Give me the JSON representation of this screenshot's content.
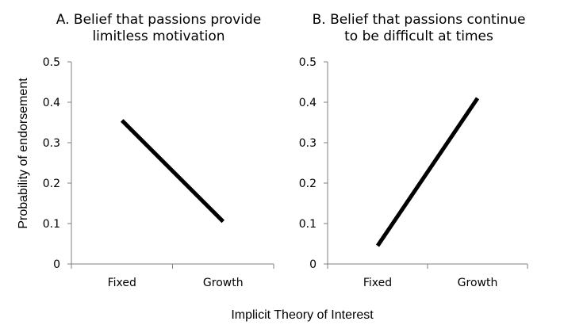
{
  "chart_data": [
    {
      "type": "line",
      "title": "A.  Belief that passions provide limitless motivation",
      "title_lines": [
        "A.  Belief that passions provide",
        "limitless motivation"
      ],
      "categories": [
        "Fixed",
        "Growth"
      ],
      "values": [
        0.355,
        0.105
      ],
      "ylim": [
        0,
        0.5
      ],
      "yticks": [
        "0",
        "0.1",
        "0.2",
        "0.3",
        "0.4",
        "0.5"
      ],
      "ylabel": "Probability of endorsement",
      "xlabel": ""
    },
    {
      "type": "line",
      "title": "B.  Belief that passions continue to be difficult at times",
      "title_lines": [
        "B.  Belief that passions continue",
        "to be difficult at times"
      ],
      "categories": [
        "Fixed",
        "Growth"
      ],
      "values": [
        0.045,
        0.41
      ],
      "ylim": [
        0,
        0.5
      ],
      "yticks": [
        "0",
        "0.1",
        "0.2",
        "0.3",
        "0.4",
        "0.5"
      ],
      "ylabel": "",
      "xlabel": ""
    }
  ],
  "shared_xlabel": "Implicit Theory of Interest",
  "colors": {
    "line": "#000000",
    "axis": "#7f7f7f"
  }
}
